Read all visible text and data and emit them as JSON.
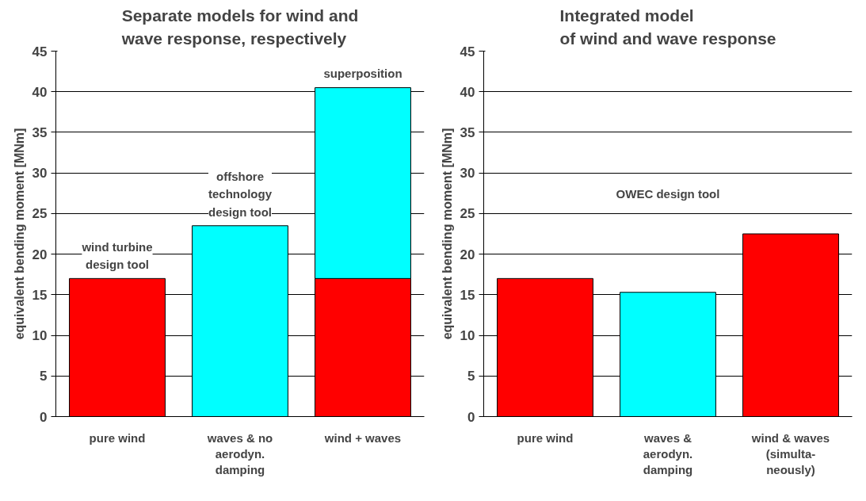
{
  "chart_data": [
    {
      "type": "bar",
      "title": "Separate models for wind and\nwave response, respectively",
      "ylabel": "equivalent bending moment [MNm]",
      "categories": [
        "pure wind",
        "waves & no\naerodyn.\ndamping",
        "wind + waves"
      ],
      "stacked": true,
      "series": [
        {
          "color": "#ff0000",
          "values": [
            17,
            null,
            17
          ]
        },
        {
          "color": "#00ffff",
          "values": [
            null,
            23.5,
            23.5
          ]
        }
      ],
      "ylim": [
        0,
        45
      ],
      "yticks": [
        0,
        5,
        10,
        15,
        20,
        25,
        30,
        35,
        40,
        45
      ],
      "grid": "y",
      "annotations": [
        "wind turbine\ndesign tool",
        "offshore\ntechnology\ndesign tool",
        "superposition"
      ]
    },
    {
      "type": "bar",
      "title": "Integrated model\nof wind and wave response",
      "ylabel": "equivalent bending moment [MNm]",
      "categories": [
        "pure wind",
        "waves &\naerodyn.\ndamping",
        "wind & waves\n(simulta-\nneously)"
      ],
      "values": [
        17,
        15.3,
        22.5
      ],
      "colors": [
        "#ff0000",
        "#00ffff",
        "#ff0000"
      ],
      "ylim": [
        0,
        45
      ],
      "yticks": [
        0,
        5,
        10,
        15,
        20,
        25,
        30,
        35,
        40,
        45
      ],
      "grid": "y",
      "annotations": [
        "OWEC design tool"
      ]
    }
  ]
}
